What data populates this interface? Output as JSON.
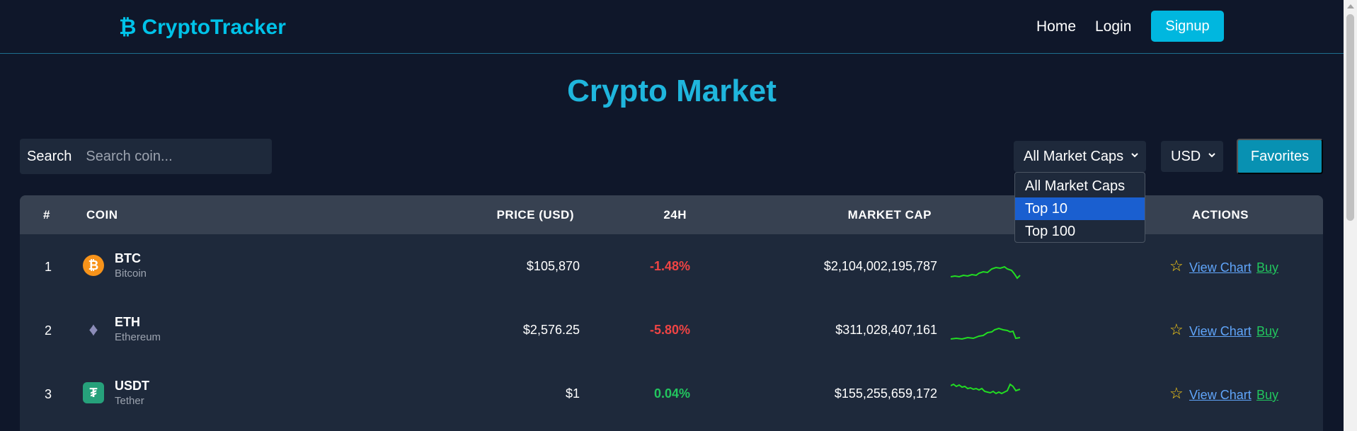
{
  "navbar": {
    "logo_icon": "₿",
    "logo_text": "CryptoTracker",
    "links": [
      "Home",
      "Login"
    ],
    "signup": "Signup"
  },
  "title": "Crypto Market",
  "search": {
    "label": "Search",
    "placeholder": "Search coin..."
  },
  "filters": {
    "market_cap_selected": "All Market Caps",
    "market_cap_options": [
      "All Market Caps",
      "Top 10",
      "Top 100"
    ],
    "highlighted_option": "Top 10",
    "currency_selected": "USD",
    "favorites": "Favorites"
  },
  "table": {
    "headers": [
      "#",
      "COIN",
      "PRICE (USD)",
      "24H",
      "MARKET CAP",
      "ACTIONS"
    ],
    "rows": [
      {
        "rank": "1",
        "symbol": "BTC",
        "name": "Bitcoin",
        "price": "$105,870",
        "change": "-1.48%",
        "market_cap": "$2,104,002,195,787",
        "icon": "bitcoin-icon",
        "trend": "negative"
      },
      {
        "rank": "2",
        "symbol": "ETH",
        "name": "Ethereum",
        "price": "$2,576.25",
        "change": "-5.80%",
        "market_cap": "$311,028,407,161",
        "icon": "ethereum-icon",
        "trend": "negative"
      },
      {
        "rank": "3",
        "symbol": "USDT",
        "name": "Tether",
        "price": "$1",
        "change": "0.04%",
        "market_cap": "$155,255,659,172",
        "icon": "tether-icon",
        "trend": "positive"
      }
    ],
    "actions": {
      "view_chart": "View Chart",
      "buy": "Buy"
    }
  },
  "colors": {
    "background": "#0f172a",
    "accent": "#00c2e8",
    "negative": "#ef4444",
    "positive": "#22c55e",
    "sparkline": "#22dd22"
  }
}
